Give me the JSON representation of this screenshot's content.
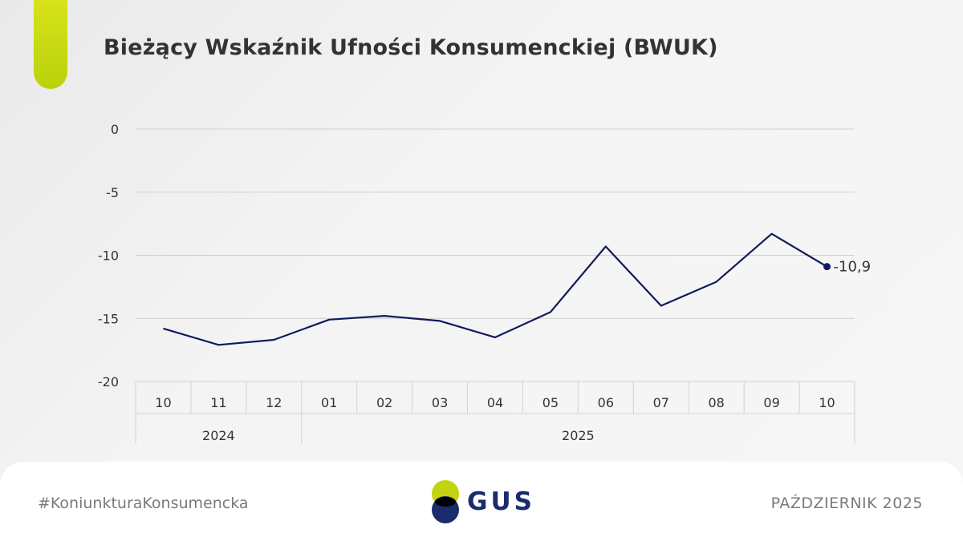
{
  "title": "Bieżący Wskaźnik Ufności Konsumenckiej (BWUK)",
  "footer": {
    "hashtag": "#KoniunkturaKonsumencka",
    "logo_text": "GUS",
    "date": "PAŹDZIERNIK 2025"
  },
  "colors": {
    "line": "#0f1b5c",
    "accent": "#c8d90f",
    "logo_navy": "#1a2c6b",
    "logo_green": "#c3d40f"
  },
  "chart_data": {
    "type": "line",
    "title": "Bieżący Wskaźnik Ufności Konsumenckiej (BWUK)",
    "xlabel": "",
    "ylabel": "",
    "ylim": [
      -20,
      0
    ],
    "yticks": [
      0,
      -5,
      -10,
      -15,
      -20
    ],
    "x": [
      "10",
      "11",
      "12",
      "01",
      "02",
      "03",
      "04",
      "05",
      "06",
      "07",
      "08",
      "09",
      "10"
    ],
    "year_groups": [
      {
        "label": "2024",
        "count": 3
      },
      {
        "label": "2025",
        "count": 10
      }
    ],
    "series": [
      {
        "values": [
          -15.8,
          -17.1,
          -16.7,
          -15.1,
          -14.8,
          -15.2,
          -16.5,
          -14.5,
          -9.3,
          -14.0,
          -12.1,
          -8.3,
          -10.9
        ]
      }
    ],
    "last_point_label": "-10,9",
    "grid": true
  }
}
